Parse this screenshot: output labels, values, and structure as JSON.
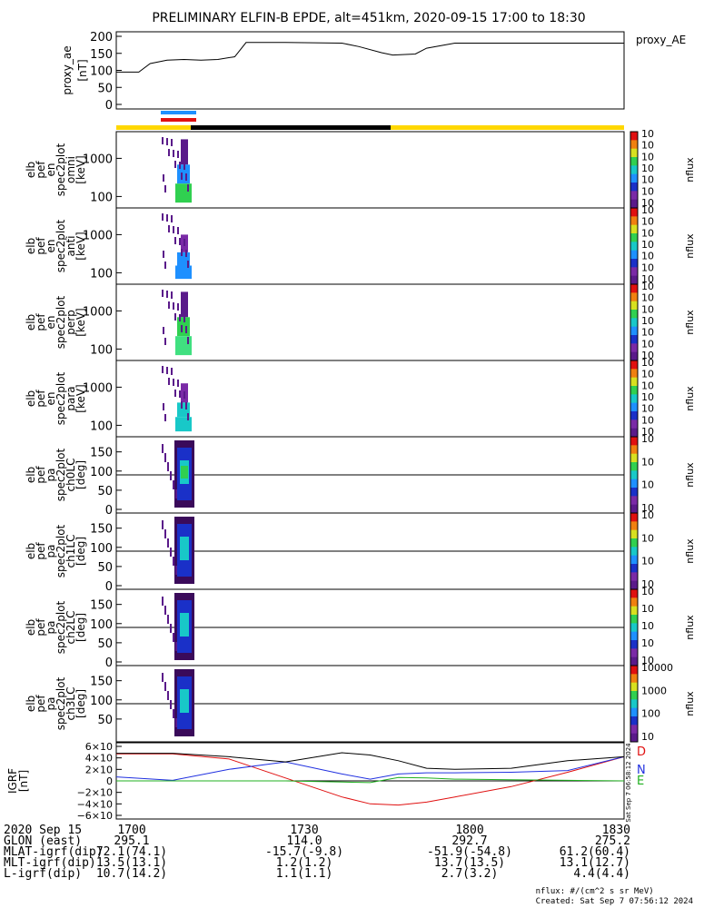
{
  "title": "PRELIMINARY ELFIN-B EPDE, alt=451km, 2020-09-15 17:00 to 18:30",
  "colors": {
    "fgm_x": "#000000",
    "fgm_y": "#2030e0",
    "fgm_z": "#e01010",
    "fgm_t": "#20b020",
    "sun": "#ffd700",
    "shadow": "#000000",
    "sci_blue": "#1e90ff",
    "sci_red": "#e01010"
  },
  "chart_data": [
    {
      "type": "line",
      "ylabel": "proxy_ae [nT]",
      "ylim": [
        0,
        200
      ],
      "yticks": [
        "200",
        "150",
        "100",
        "50",
        "0"
      ],
      "x": [
        "17:00",
        "17:04",
        "17:06",
        "17:09",
        "17:12",
        "17:15",
        "17:18",
        "17:21",
        "17:23",
        "17:30",
        "17:40",
        "17:43",
        "17:47",
        "17:49",
        "17:53",
        "17:55",
        "18:00",
        "18:10",
        "18:20",
        "18:30"
      ],
      "series": [
        {
          "name": "proxy_AE",
          "values": [
            95,
            95,
            120,
            130,
            132,
            130,
            132,
            140,
            182,
            182,
            180,
            170,
            152,
            145,
            148,
            165,
            180,
            180,
            180,
            180
          ]
        }
      ]
    },
    {
      "type": "heatmap",
      "ylabel": [
        "elb",
        "pef",
        "en",
        "spec2plot",
        "omni",
        "[keV]"
      ],
      "yticks": [
        "1000",
        "100"
      ],
      "zlabel": "nflux",
      "zticks": [
        "10<sup>7</sup>",
        "10<sup>6</sup>",
        "10<sup>5</sup>",
        "10<sup>4</sup>",
        "10<sup>3</sup>",
        "10<sup>2</sup>",
        "10<sup>1</sup>"
      ]
    },
    {
      "type": "heatmap",
      "ylabel": [
        "elb",
        "pef",
        "en",
        "spec2plot",
        "anti",
        "[keV]"
      ],
      "yticks": [
        "1000",
        "100"
      ],
      "zlabel": "nflux",
      "zticks": [
        "10<sup>7</sup>",
        "10<sup>6</sup>",
        "10<sup>5</sup>",
        "10<sup>4</sup>",
        "10<sup>3</sup>",
        "10<sup>2</sup>",
        "10<sup>1</sup>"
      ]
    },
    {
      "type": "heatmap",
      "ylabel": [
        "elb",
        "pef",
        "en",
        "spec2plot",
        "perp",
        "[keV]"
      ],
      "yticks": [
        "1000",
        "100"
      ],
      "zlabel": "nflux",
      "zticks": [
        "10<sup>7</sup>",
        "10<sup>6</sup>",
        "10<sup>5</sup>",
        "10<sup>4</sup>",
        "10<sup>3</sup>",
        "10<sup>2</sup>",
        "10<sup>1</sup>"
      ]
    },
    {
      "type": "heatmap",
      "ylabel": [
        "elb",
        "pef",
        "en",
        "spec2plot",
        "para",
        "[keV]"
      ],
      "yticks": [
        "1000",
        "100"
      ],
      "zlabel": "nflux",
      "zticks": [
        "10<sup>7</sup>",
        "10<sup>6</sup>",
        "10<sup>5</sup>",
        "10<sup>4</sup>",
        "10<sup>3</sup>",
        "10<sup>2</sup>",
        "10<sup>1</sup>"
      ]
    },
    {
      "type": "heatmap",
      "ylabel": [
        "elb",
        "pef",
        "pa",
        "spec2plot",
        "ch0LC",
        "[deg]"
      ],
      "yticks": [
        "150",
        "100",
        "50",
        "0"
      ],
      "zlabel": "nflux",
      "zticks": [
        "10<sup>7</sup>",
        "10<sup>6</sup>",
        "10<sup>5</sup>",
        "10<sup>4</sup>"
      ]
    },
    {
      "type": "heatmap",
      "ylabel": [
        "elb",
        "pef",
        "pa",
        "spec2plot",
        "ch1LC",
        "[deg]"
      ],
      "yticks": [
        "150",
        "100",
        "50",
        "0"
      ],
      "zlabel": "nflux",
      "zticks": [
        "10<sup>6</sup>",
        "10<sup>5</sup>",
        "10<sup>4</sup>",
        "10<sup>3</sup>"
      ]
    },
    {
      "type": "heatmap",
      "ylabel": [
        "elb",
        "pef",
        "pa",
        "spec2plot",
        "ch2LC",
        "[deg]"
      ],
      "yticks": [
        "150",
        "100",
        "50",
        "0"
      ],
      "zlabel": "nflux",
      "zticks": [
        "10<sup>6</sup>",
        "10<sup>5</sup>",
        "10<sup>4</sup>",
        "10<sup>3</sup>",
        "10<sup>2</sup>"
      ]
    },
    {
      "type": "heatmap",
      "ylabel": [
        "elb",
        "pef",
        "pa",
        "spec2plot",
        "ch3LC",
        "[deg]"
      ],
      "yticks": [
        "150",
        "100",
        "50"
      ],
      "zlabel": "nflux",
      "zticks": [
        "10000",
        "1000",
        "100",
        "10"
      ]
    },
    {
      "type": "line",
      "ylabel": "IGRF [nT]",
      "ylim": [
        -60000,
        60000
      ],
      "yticks": [
        "6×10<sup>4</sup>",
        "4×10<sup>4</sup>",
        "2×10<sup>4</sup>",
        "0",
        "−2×10<sup>4</sup>",
        "−4×10<sup>4</sup>",
        "−6×10<sup>4</sup>"
      ],
      "x": [
        "17:00",
        "17:10",
        "17:20",
        "17:30",
        "17:40",
        "17:45",
        "17:50",
        "17:55",
        "18:00",
        "18:10",
        "18:20",
        "18:30"
      ],
      "series": [
        {
          "name": "D",
          "values": [
            47000,
            47000,
            38000,
            5000,
            -28000,
            -40000,
            -42000,
            -37000,
            -28000,
            -10000,
            15000,
            42000
          ]
        },
        {
          "name": "N",
          "values": [
            7000,
            1000,
            20000,
            33000,
            12000,
            3000,
            12000,
            14000,
            14000,
            15000,
            18000,
            42000
          ]
        },
        {
          "name": "E",
          "values": [
            0,
            0,
            0,
            0,
            -2000,
            -3000,
            6000,
            5000,
            3000,
            2000,
            1000,
            0
          ]
        },
        {
          "values": [
            48000,
            48000,
            42000,
            33000,
            49000,
            45000,
            35000,
            22000,
            20000,
            22000,
            35000,
            42000
          ]
        }
      ]
    }
  ],
  "series_labels": {
    "ae": "proxy_AE",
    "d": "D",
    "n": "N",
    "e": "E"
  },
  "igrf_side_text": "Sat Sep  7 06:58:12 2024",
  "footer": {
    "rows": [
      {
        "label": "2020 Sep 15",
        "values": [
          "1700",
          "1730",
          "1800",
          "1830"
        ]
      },
      {
        "label": "GLON (east)",
        "values": [
          "295.1",
          "114.0",
          "292.7",
          "275.2"
        ]
      },
      {
        "label": "MLAT-igrf(dip)",
        "values": [
          "72.1(74.1)",
          "-15.7(-9.8)",
          "-51.9(-54.8)",
          "61.2(60.4)"
        ]
      },
      {
        "label": "MLT-igrf(dip)",
        "values": [
          "13.5(13.1)",
          "1.2(1.2)",
          "13.7(13.5)",
          "13.1(12.7)"
        ]
      },
      {
        "label": "L-igrf(dip)",
        "values": [
          "10.7(14.2)",
          "1.1(1.1)",
          "2.7(3.2)",
          "4.4(4.4)"
        ]
      }
    ],
    "units_note": "nflux: #/(cm^2 s sr MeV)",
    "created": "Created: Sat Sep  7 07:56:12 2024"
  }
}
